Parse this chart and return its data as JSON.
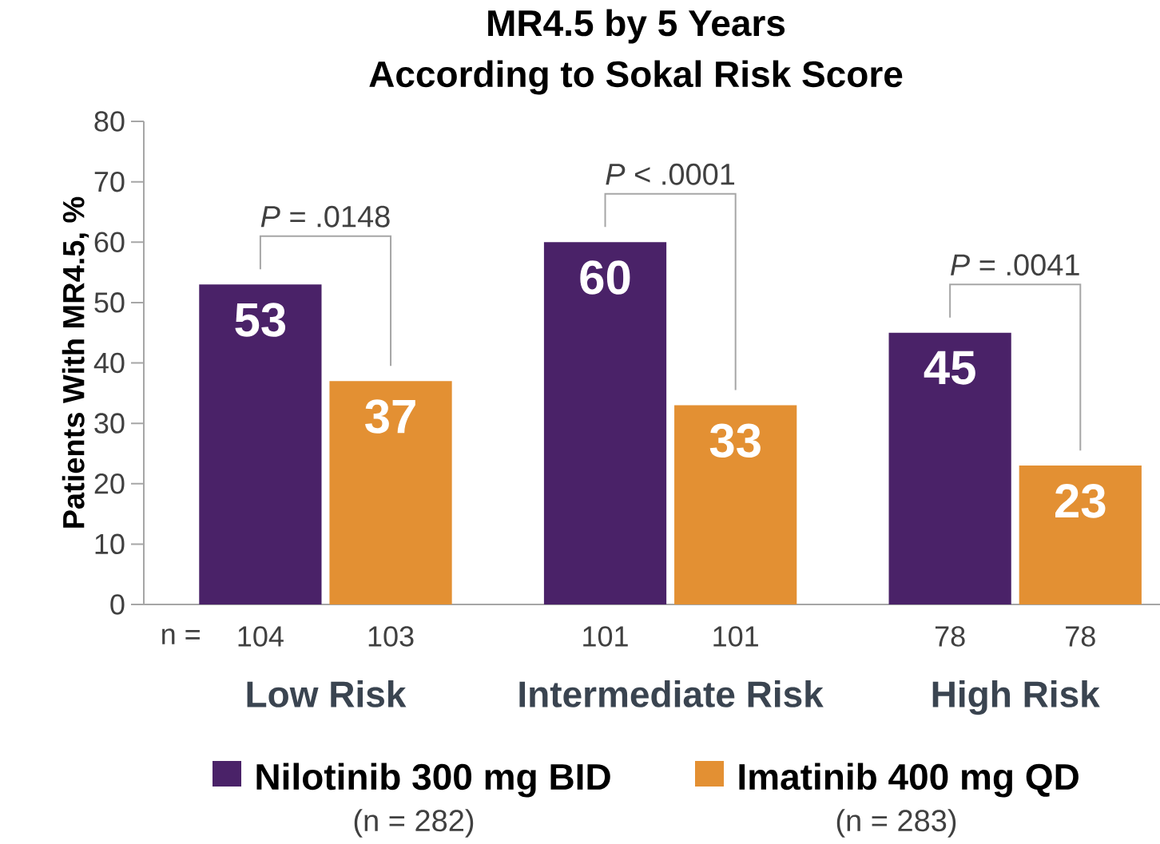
{
  "chart_data": {
    "type": "bar",
    "title": "MR4.5 by 5 Years",
    "subtitle": "According to Sokal Risk Score",
    "ylabel": "Patients With MR4.5, %",
    "categories": [
      "Low Risk",
      "Intermediate Risk",
      "High Risk"
    ],
    "series": [
      {
        "name": "Nilotinib 300 mg BID",
        "color": "#4a2268",
        "values": [
          53,
          60,
          45
        ]
      },
      {
        "name": "Imatinib 400 mg QD",
        "color": "#e39033",
        "values": [
          37,
          33,
          23
        ]
      }
    ],
    "ylim": [
      0,
      80
    ],
    "yticks": [
      0,
      10,
      20,
      30,
      40,
      50,
      60,
      70,
      80
    ],
    "data_labels": true,
    "legend": "bottom",
    "grid": false,
    "annotations": [
      "n =",
      "104",
      "103",
      "101",
      "101",
      "78",
      "78",
      "(n = 282)",
      "(n = 283)",
      "*P* = .0148",
      "*P* < .0001",
      "*P* = .0041"
    ]
  }
}
